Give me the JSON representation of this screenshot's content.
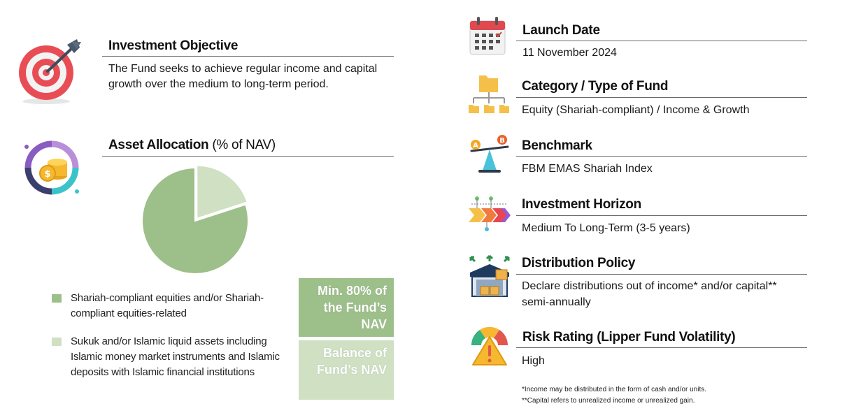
{
  "colors": {
    "equities_green": "#9dc08b",
    "sukuk_green": "#cfe0c3",
    "target_red": "#e84d55",
    "gauge_red": "#e2574c",
    "gauge_yellow": "#f7b731",
    "gauge_green": "#36b37e"
  },
  "icons": {
    "objective": "target-icon",
    "allocation": "coins-icon",
    "launch": "calendar-icon",
    "category": "folder-tree-icon",
    "benchmark": "scale-icon",
    "horizon": "timeline-arrows-icon",
    "distribution": "warehouse-icon",
    "risk": "gauge-warning-icon"
  },
  "objective": {
    "heading": "Investment Objective",
    "text": "The Fund seeks to achieve regular income and capital growth over the medium to long-term period."
  },
  "allocation": {
    "heading": "Asset Allocation",
    "heading_suffix": "(% of NAV)",
    "legend": [
      {
        "label": "Shariah-compliant equities and/or Shariah-compliant equities-related",
        "box": "Min. 80% of the Fund’s NAV"
      },
      {
        "label": "Sukuk and/or Islamic liquid assets including Islamic money market instruments and Islamic deposits with Islamic financial institutions",
        "box": "Balance of Fund’s NAV"
      }
    ]
  },
  "chart_data": {
    "type": "pie",
    "categories": [
      "Shariah-compliant equities and/or Shariah-compliant equities-related",
      "Sukuk and/or Islamic liquid assets including Islamic money market instruments and Islamic deposits with Islamic financial institutions"
    ],
    "values": [
      80,
      20
    ],
    "colors": [
      "#9dc08b",
      "#cfe0c3"
    ],
    "title": "",
    "legend": "bottom-left"
  },
  "launch": {
    "heading": "Launch Date",
    "text": "11 November 2024"
  },
  "category": {
    "heading": "Category / Type of Fund",
    "text": "Equity (Shariah-compliant) / Income & Growth"
  },
  "benchmark": {
    "heading": "Benchmark",
    "text": "FBM EMAS Shariah Index",
    "icon_letters": [
      "A",
      "B"
    ]
  },
  "horizon": {
    "heading": "Investment Horizon",
    "text": "Medium To Long-Term (3-5 years)"
  },
  "distribution": {
    "heading": "Distribution Policy",
    "text": "Declare distributions out of income* and/or capital** semi-annually"
  },
  "risk": {
    "heading": "Risk Rating (Lipper Fund Volatility)",
    "text": "High"
  },
  "footnotes": [
    "*Income may be distributed in the form of cash and/or units.",
    "**Capital refers to unrealized income or unrealized gain."
  ]
}
